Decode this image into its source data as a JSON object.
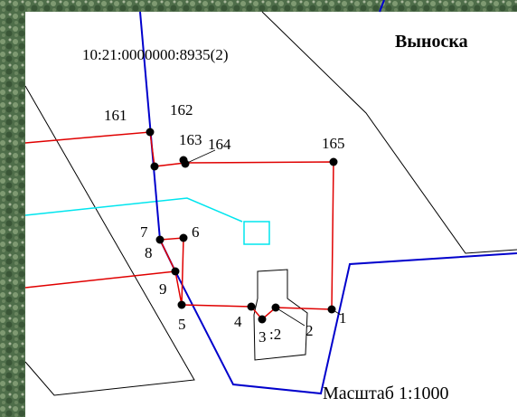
{
  "title": "Выноска",
  "parcel_id": "10:21:0000000:8935(2)",
  "points": [
    "161",
    "162",
    "163",
    "164",
    "165",
    "7",
    "6",
    "8",
    "9",
    "5",
    "4",
    "3",
    "2",
    "1"
  ],
  "part_label": ":2",
  "scale": "Масштаб 1:1000"
}
